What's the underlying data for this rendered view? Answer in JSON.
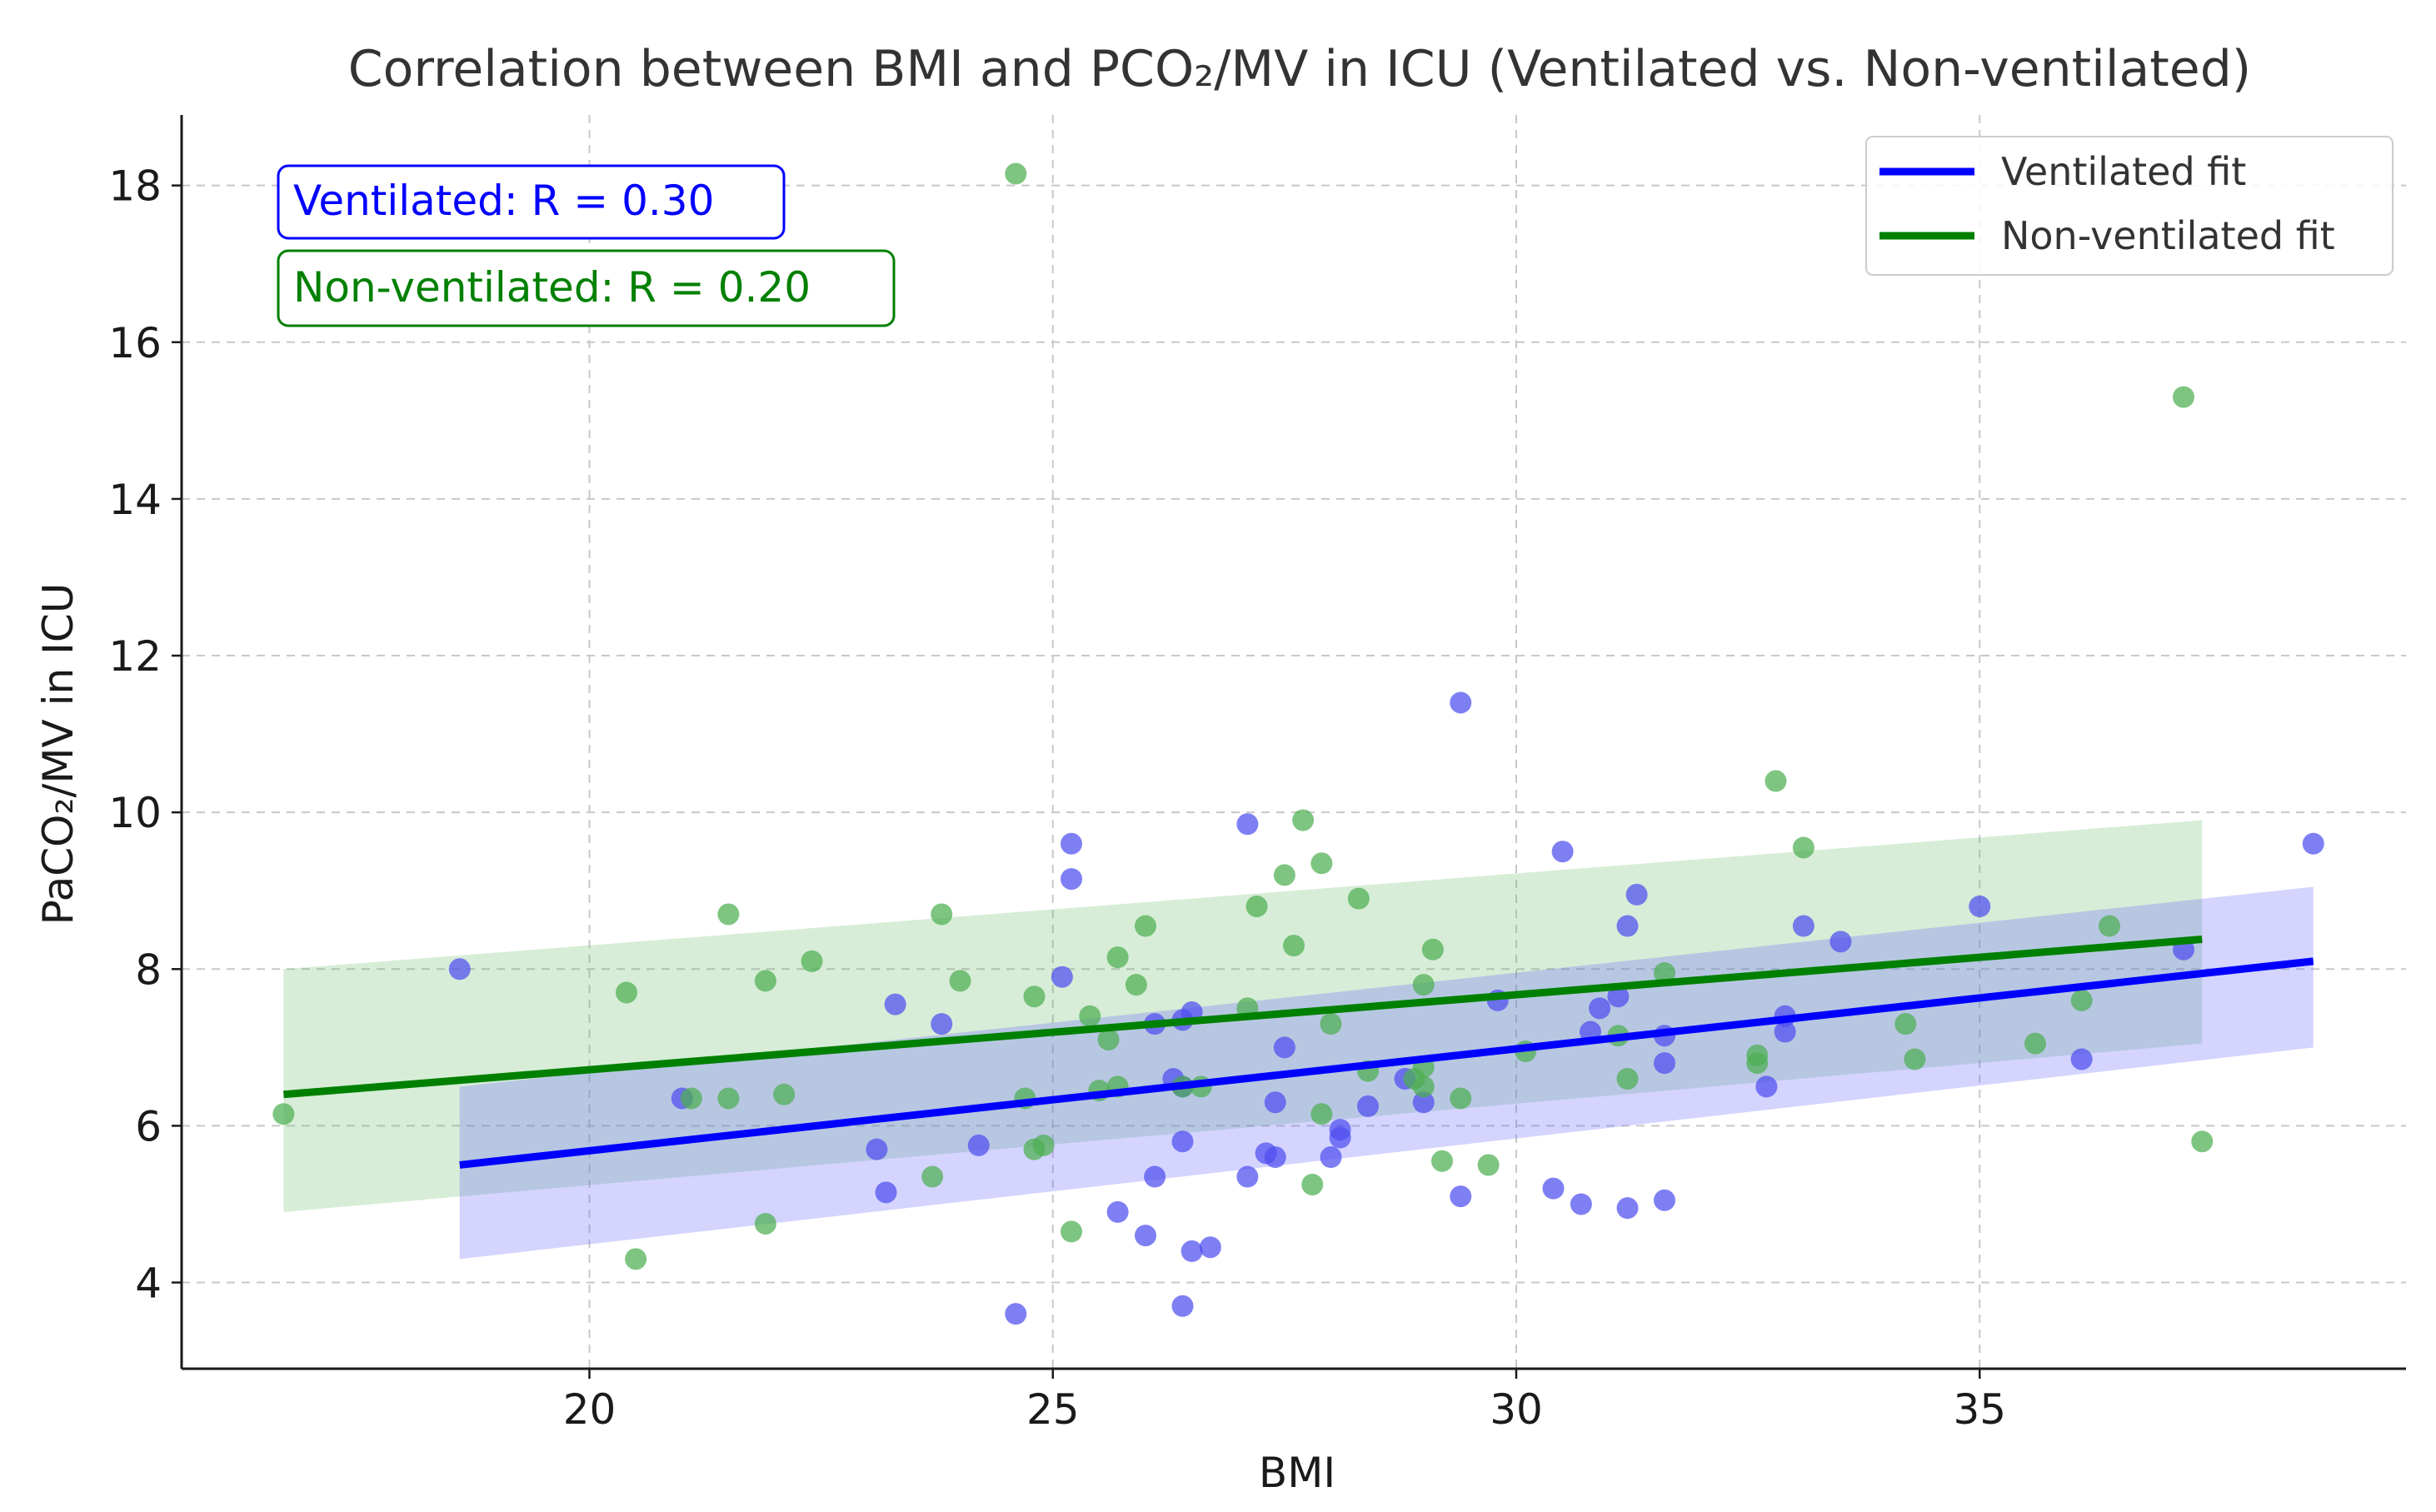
{
  "chart_data": {
    "type": "scatter",
    "title": "Correlation between BMI and PCO₂/MV in ICU (Ventilated vs. Non-ventilated)",
    "xlabel": "BMI",
    "ylabel": "PaCO₂/MV in ICU",
    "xlim": [
      15.6,
      39.6
    ],
    "ylim": [
      2.9,
      18.9
    ],
    "xticks": [
      20,
      25,
      30,
      35
    ],
    "yticks": [
      4,
      6,
      8,
      10,
      12,
      14,
      16,
      18
    ],
    "grid": true,
    "legend_position": "top-right",
    "annotations": [
      {
        "text": "Ventilated: R = 0.30",
        "color": "#0000ff",
        "position": "top-left"
      },
      {
        "text": "Non-ventilated: R = 0.20",
        "color": "#008000",
        "position": "top-left"
      }
    ],
    "series": [
      {
        "name": "Ventilated",
        "legend": "Ventilated fit",
        "color": "#0000ff",
        "point_color": "#4d4df0",
        "band_color": "#6666ff",
        "fit": {
          "x": [
            18.6,
            38.6
          ],
          "y": [
            5.5,
            8.1
          ]
        },
        "band": {
          "x": [
            18.6,
            38.6
          ],
          "lower": [
            4.3,
            7.0
          ],
          "upper": [
            6.5,
            9.05
          ]
        },
        "points": [
          [
            18.6,
            8.0
          ],
          [
            21.0,
            6.35
          ],
          [
            23.1,
            5.7
          ],
          [
            23.2,
            5.15
          ],
          [
            23.3,
            7.55
          ],
          [
            23.8,
            7.3
          ],
          [
            24.2,
            5.75
          ],
          [
            24.6,
            3.6
          ],
          [
            25.1,
            7.9
          ],
          [
            25.2,
            9.6
          ],
          [
            25.2,
            9.15
          ],
          [
            25.7,
            4.9
          ],
          [
            26.0,
            4.6
          ],
          [
            26.1,
            5.35
          ],
          [
            26.1,
            7.3
          ],
          [
            26.3,
            6.6
          ],
          [
            26.4,
            5.8
          ],
          [
            26.4,
            6.5
          ],
          [
            26.4,
            3.7
          ],
          [
            26.4,
            7.35
          ],
          [
            26.5,
            4.4
          ],
          [
            26.5,
            7.45
          ],
          [
            26.7,
            4.45
          ],
          [
            27.1,
            5.35
          ],
          [
            27.1,
            9.85
          ],
          [
            27.3,
            5.65
          ],
          [
            27.4,
            6.3
          ],
          [
            27.4,
            5.6
          ],
          [
            27.5,
            7.0
          ],
          [
            28.0,
            5.6
          ],
          [
            28.1,
            5.85
          ],
          [
            28.1,
            5.95
          ],
          [
            28.4,
            6.25
          ],
          [
            28.8,
            6.6
          ],
          [
            29.0,
            6.3
          ],
          [
            29.4,
            11.4
          ],
          [
            29.4,
            5.1
          ],
          [
            29.8,
            7.6
          ],
          [
            30.4,
            5.2
          ],
          [
            30.5,
            9.5
          ],
          [
            30.7,
            5.0
          ],
          [
            30.8,
            7.2
          ],
          [
            30.9,
            7.5
          ],
          [
            31.1,
            7.65
          ],
          [
            31.2,
            8.55
          ],
          [
            31.2,
            4.95
          ],
          [
            31.3,
            8.95
          ],
          [
            31.6,
            5.05
          ],
          [
            31.6,
            6.8
          ],
          [
            31.6,
            7.15
          ],
          [
            32.7,
            6.5
          ],
          [
            32.9,
            7.2
          ],
          [
            32.9,
            7.4
          ],
          [
            33.1,
            8.55
          ],
          [
            33.5,
            8.35
          ],
          [
            35.0,
            8.8
          ],
          [
            36.1,
            6.85
          ],
          [
            37.2,
            8.25
          ],
          [
            38.6,
            9.6
          ]
        ]
      },
      {
        "name": "Non-ventilated",
        "legend": "Non-ventilated fit",
        "color": "#008000",
        "point_color": "#4caf50",
        "band_color": "#66bb66",
        "fit": {
          "x": [
            16.7,
            37.4
          ],
          "y": [
            6.4,
            8.38
          ]
        },
        "band": {
          "x": [
            16.7,
            37.4
          ],
          "lower": [
            4.9,
            7.05
          ],
          "upper": [
            8.0,
            9.9
          ]
        },
        "points": [
          [
            16.7,
            6.15
          ],
          [
            20.4,
            7.7
          ],
          [
            20.5,
            4.3
          ],
          [
            21.1,
            6.35
          ],
          [
            21.5,
            8.7
          ],
          [
            21.5,
            6.35
          ],
          [
            21.9,
            7.85
          ],
          [
            21.9,
            4.75
          ],
          [
            22.1,
            6.4
          ],
          [
            22.4,
            8.1
          ],
          [
            23.7,
            5.35
          ],
          [
            23.8,
            8.7
          ],
          [
            24.0,
            7.85
          ],
          [
            24.7,
            6.35
          ],
          [
            24.8,
            7.65
          ],
          [
            24.8,
            5.7
          ],
          [
            24.9,
            5.75
          ],
          [
            24.6,
            18.15
          ],
          [
            25.2,
            4.65
          ],
          [
            25.4,
            7.4
          ],
          [
            25.5,
            6.45
          ],
          [
            25.6,
            7.1
          ],
          [
            25.7,
            8.15
          ],
          [
            25.7,
            6.5
          ],
          [
            25.9,
            7.8
          ],
          [
            26.0,
            8.55
          ],
          [
            26.4,
            6.5
          ],
          [
            26.6,
            6.5
          ],
          [
            27.1,
            7.5
          ],
          [
            27.2,
            8.8
          ],
          [
            27.5,
            9.2
          ],
          [
            27.6,
            8.3
          ],
          [
            27.7,
            9.9
          ],
          [
            27.8,
            5.25
          ],
          [
            27.9,
            9.35
          ],
          [
            27.9,
            6.15
          ],
          [
            28.0,
            7.3
          ],
          [
            28.3,
            8.9
          ],
          [
            28.4,
            6.7
          ],
          [
            28.9,
            6.6
          ],
          [
            29.0,
            6.75
          ],
          [
            29.0,
            6.5
          ],
          [
            29.0,
            7.8
          ],
          [
            29.1,
            8.25
          ],
          [
            29.2,
            5.55
          ],
          [
            29.4,
            6.35
          ],
          [
            29.7,
            5.5
          ],
          [
            30.1,
            6.95
          ],
          [
            31.1,
            7.15
          ],
          [
            31.2,
            6.6
          ],
          [
            31.6,
            7.95
          ],
          [
            32.6,
            6.8
          ],
          [
            32.6,
            6.9
          ],
          [
            32.8,
            10.4
          ],
          [
            33.1,
            9.55
          ],
          [
            34.2,
            7.3
          ],
          [
            34.3,
            6.85
          ],
          [
            35.6,
            7.05
          ],
          [
            36.1,
            7.6
          ],
          [
            36.4,
            8.55
          ],
          [
            37.2,
            15.3
          ],
          [
            37.4,
            5.8
          ]
        ]
      }
    ]
  }
}
